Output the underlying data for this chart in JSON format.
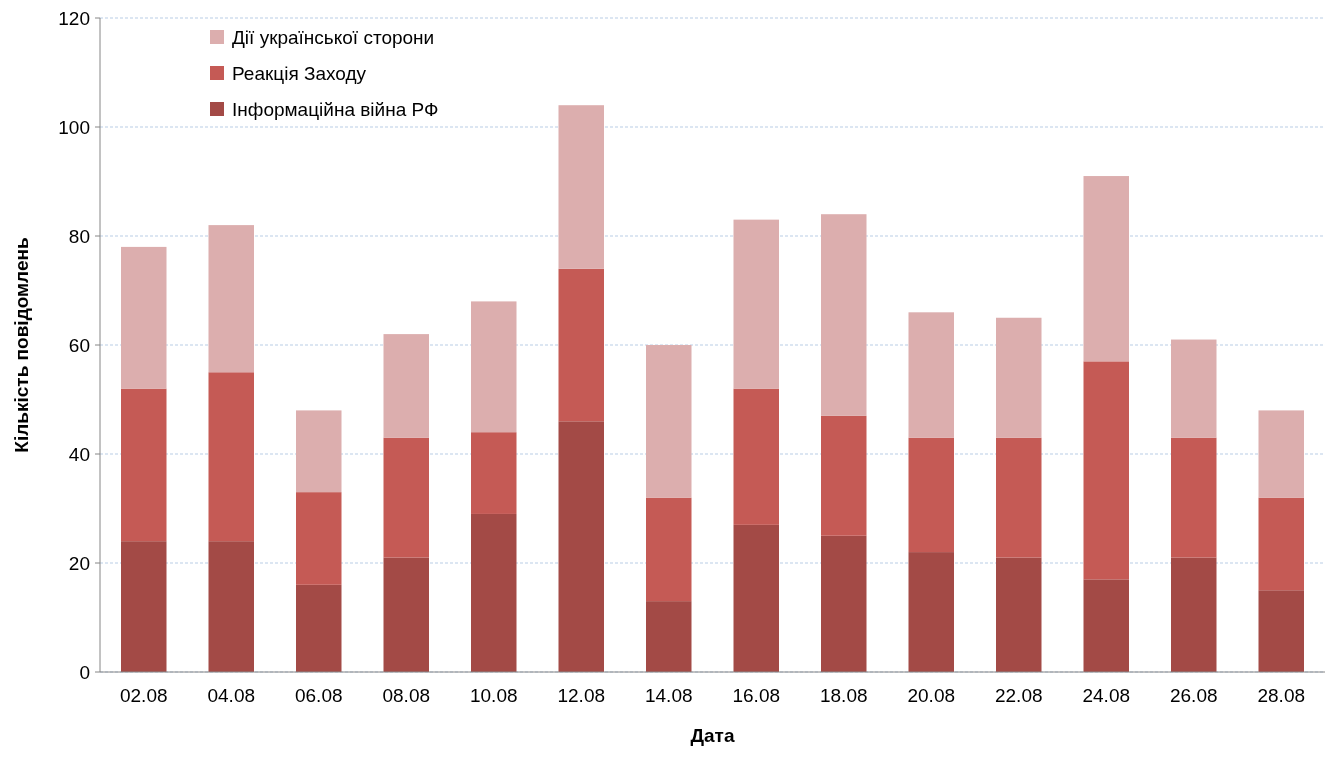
{
  "chart_data": {
    "type": "bar",
    "stacked": true,
    "xlabel": "Дата",
    "ylabel": "Кількість повідомлень",
    "categories": [
      "02.08",
      "04.08",
      "06.08",
      "08.08",
      "10.08",
      "12.08",
      "14.08",
      "16.08",
      "18.08",
      "20.08",
      "22.08",
      "24.08",
      "26.08",
      "28.08"
    ],
    "series": [
      {
        "name": "Інформаційна війна РФ",
        "color": "#a34a46",
        "values": [
          24,
          24,
          16,
          21,
          29,
          46,
          13,
          27,
          25,
          22,
          21,
          17,
          21,
          15
        ]
      },
      {
        "name": "Реакція Заходу",
        "color": "#c55a55",
        "values": [
          28,
          31,
          17,
          22,
          15,
          28,
          19,
          25,
          22,
          21,
          22,
          40,
          22,
          17
        ]
      },
      {
        "name": "Дії української сторони",
        "color": "#dcaeae",
        "values": [
          26,
          27,
          15,
          19,
          24,
          30,
          28,
          31,
          37,
          23,
          22,
          34,
          18,
          16
        ]
      }
    ],
    "ylim": [
      0,
      120
    ],
    "yticks": [
      0,
      20,
      40,
      60,
      80,
      100,
      120
    ],
    "grid": "y",
    "legend": "top left"
  }
}
